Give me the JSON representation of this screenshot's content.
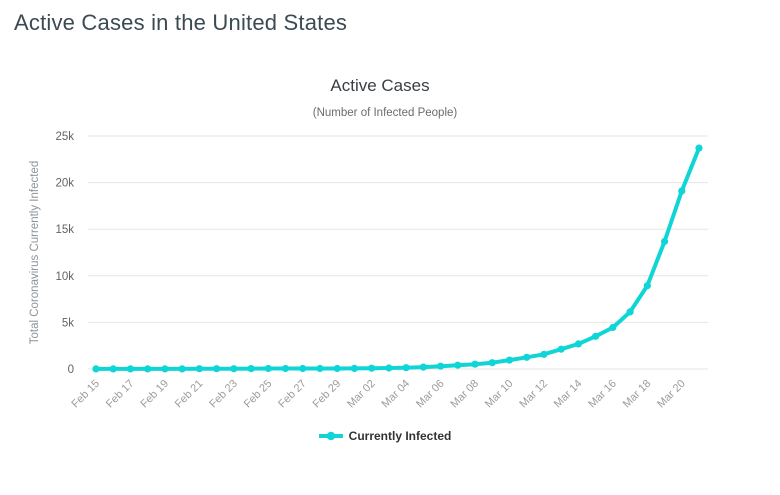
{
  "page": {
    "heading": "Active Cases in the United States"
  },
  "chart": {
    "title": "Active Cases",
    "subtitle": "(Number of Infected People)",
    "y_axis_title": "Total Coronavirus Currently Infected",
    "legend_label": "Currently Infected",
    "colors": {
      "line": "#10d5d6",
      "grid": "#e6e6e6",
      "y_tick_label": "#636363",
      "x_tick_label": "#9e9c99",
      "axis_title": "#8d9398",
      "title": "#383f45",
      "subtitle_text": "#6b6b6b",
      "heading_text": "#3c4a52",
      "legend_text": "#333333"
    }
  },
  "chart_data": {
    "type": "line",
    "title": "Active Cases",
    "subtitle": "(Number of Infected People)",
    "xlabel": "",
    "ylabel": "Total Coronavirus Currently Infected",
    "ylim": [
      0,
      25000
    ],
    "y_tick_labels": [
      "0",
      "5k",
      "10k",
      "15k",
      "20k",
      "25k"
    ],
    "x_label_every": 2,
    "grid": "horizontal",
    "legend_position": "bottom",
    "categories": [
      "Feb 15",
      "Feb 16",
      "Feb 17",
      "Feb 18",
      "Feb 19",
      "Feb 20",
      "Feb 21",
      "Feb 22",
      "Feb 23",
      "Feb 24",
      "Feb 25",
      "Feb 26",
      "Feb 27",
      "Feb 28",
      "Feb 29",
      "Mar 01",
      "Mar 02",
      "Mar 03",
      "Mar 04",
      "Mar 05",
      "Mar 06",
      "Mar 07",
      "Mar 08",
      "Mar 09",
      "Mar 10",
      "Mar 11",
      "Mar 12",
      "Mar 13",
      "Mar 14",
      "Mar 15",
      "Mar 16",
      "Mar 17",
      "Mar 18",
      "Mar 19",
      "Mar 20",
      "Mar 21"
    ],
    "series": [
      {
        "name": "Currently Infected",
        "color": "#10d5d6",
        "values": [
          12,
          12,
          12,
          12,
          12,
          12,
          28,
          28,
          28,
          45,
          49,
          52,
          52,
          54,
          59,
          66,
          91,
          112,
          143,
          203,
          299,
          413,
          517,
          674,
          959,
          1260,
          1580,
          2120,
          2690,
          3510,
          4450,
          6130,
          8940,
          13680,
          19100,
          23700
        ]
      }
    ]
  }
}
